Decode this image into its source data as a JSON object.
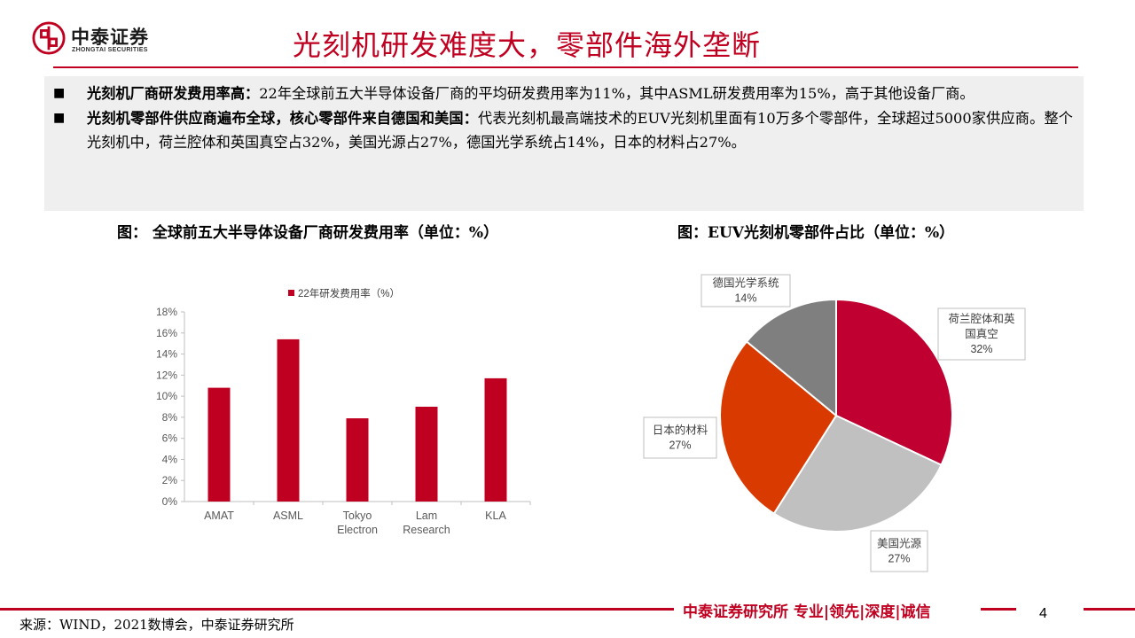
{
  "logo": {
    "cn": "中泰证券",
    "en": "ZHONGTAI SECURITIES",
    "brand_color": "#c00020"
  },
  "slide_title": "光刻机研发难度大，零部件海外垄断",
  "bullets": [
    {
      "marker": "■",
      "bold": "光刻机厂商研发费用率高：",
      "text": "22年全球前五大半导体设备厂商的平均研发费用率为11%，其中ASML研发费用率为15%，高于其他设备厂商。"
    },
    {
      "marker": "■",
      "bold": "光刻机零部件供应商遍布全球，核心零部件来自德国和美国：",
      "text": "代表光刻机最高端技术的EUV光刻机里面有10万多个零部件，全球超过5000家供应商。整个光刻机中，荷兰腔体和英国真空占32%，美国光源占27%，德国光学系统占14%，日本的材料占27%。"
    }
  ],
  "figures": {
    "left_caption": "图：  全球前五大半导体设备厂商研发费用率（单位：%）",
    "right_caption": "图：EUV光刻机零部件占比（单位：%）"
  },
  "chart_data": [
    {
      "type": "bar",
      "categories": [
        [
          "AMAT"
        ],
        [
          "ASML"
        ],
        [
          "Tokyo",
          "Electron"
        ],
        [
          "Lam",
          "Research"
        ],
        [
          "KLA"
        ]
      ],
      "series": [
        {
          "name": "22年研发费用率（%）",
          "values": [
            10.8,
            15.4,
            7.9,
            9.0,
            11.7
          ],
          "color": "#c00020"
        }
      ],
      "ylim": [
        0,
        18
      ],
      "yticks": [
        0,
        2,
        4,
        6,
        8,
        10,
        12,
        14,
        16,
        18
      ],
      "ytick_labels": [
        "0%",
        "2%",
        "4%",
        "6%",
        "8%",
        "10%",
        "12%",
        "14%",
        "16%",
        "18%"
      ],
      "legend": "top",
      "grid": false
    },
    {
      "type": "pie",
      "slices": [
        {
          "label": [
            "荷兰腔体和英",
            "国真空"
          ],
          "value": 32,
          "value_label": "32%",
          "color": "#c00030"
        },
        {
          "label": [
            "美国光源"
          ],
          "value": 27,
          "value_label": "27%",
          "color": "#c0c0c0"
        },
        {
          "label": [
            "日本的材料"
          ],
          "value": 27,
          "value_label": "27%",
          "color": "#d93a00"
        },
        {
          "label": [
            "德国光学系统"
          ],
          "value": 14,
          "value_label": "14%",
          "color": "#7f7f7f"
        }
      ],
      "start_angle_deg": 0,
      "direction": "clockwise"
    }
  ],
  "footer": {
    "slogan": "中泰证券研究所 专业|领先|深度|诚信",
    "page_number": "4",
    "source": "来源：WIND，2021数博会，中泰证券研究所"
  }
}
